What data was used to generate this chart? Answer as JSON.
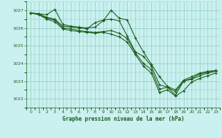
{
  "title": "Graphe pression niveau de la mer (hPa)",
  "bg_color": "#caf0f0",
  "grid_color": "#88ccbb",
  "line_color": "#1a5c1a",
  "ylim": [
    1021.5,
    1027.5
  ],
  "xlim": [
    -0.5,
    23.5
  ],
  "yticks": [
    1022,
    1023,
    1024,
    1025,
    1026,
    1027
  ],
  "xticks": [
    0,
    1,
    2,
    3,
    4,
    5,
    6,
    7,
    8,
    9,
    10,
    11,
    12,
    13,
    14,
    15,
    16,
    17,
    18,
    19,
    20,
    21,
    22,
    23
  ],
  "lines": [
    {
      "x": [
        0,
        1,
        2,
        3,
        4,
        5,
        6,
        7,
        8,
        9,
        10,
        11,
        12,
        13,
        14,
        15,
        16,
        17,
        18,
        19,
        20,
        21,
        22,
        23
      ],
      "y": [
        1026.85,
        1026.8,
        1026.75,
        1027.05,
        1026.2,
        1026.1,
        1026.05,
        1026.0,
        1026.05,
        1026.4,
        1027.0,
        1026.55,
        1026.45,
        1025.45,
        1024.65,
        1023.95,
        1023.25,
        1022.7,
        1022.5,
        1023.05,
        1023.25,
        1023.45,
        1023.55,
        1023.6
      ]
    },
    {
      "x": [
        0,
        1,
        2,
        3,
        4,
        5,
        6,
        7,
        8,
        9,
        10,
        11,
        12,
        13,
        14,
        15,
        16,
        17,
        18,
        19,
        20,
        21,
        22,
        23
      ],
      "y": [
        1026.85,
        1026.8,
        1026.6,
        1026.5,
        1026.1,
        1026.05,
        1026.0,
        1025.95,
        1026.3,
        1026.45,
        1026.5,
        1026.4,
        1025.55,
        1024.65,
        1024.4,
        1023.85,
        1022.8,
        1022.65,
        1022.4,
        1023.0,
        1023.15,
        1023.4,
        1023.5,
        1023.6
      ]
    },
    {
      "x": [
        0,
        1,
        2,
        3,
        4,
        5,
        6,
        7,
        8,
        9,
        10,
        11,
        12,
        13,
        14,
        15,
        16,
        17,
        18,
        19,
        20,
        21,
        22,
        23
      ],
      "y": [
        1026.85,
        1026.75,
        1026.55,
        1026.45,
        1026.0,
        1025.95,
        1025.85,
        1025.8,
        1025.75,
        1025.8,
        1025.85,
        1025.7,
        1025.4,
        1024.6,
        1024.0,
        1023.65,
        1022.55,
        1022.65,
        1022.2,
        1023.0,
        1023.1,
        1023.3,
        1023.45,
        1023.55
      ]
    },
    {
      "x": [
        0,
        1,
        2,
        3,
        4,
        5,
        6,
        7,
        8,
        9,
        10,
        11,
        12,
        13,
        14,
        15,
        16,
        17,
        18,
        19,
        20,
        21,
        22,
        23
      ],
      "y": [
        1026.85,
        1026.75,
        1026.5,
        1026.35,
        1025.95,
        1025.85,
        1025.8,
        1025.75,
        1025.7,
        1025.75,
        1025.65,
        1025.5,
        1025.2,
        1024.5,
        1023.85,
        1023.45,
        1022.35,
        1022.5,
        1022.15,
        1022.45,
        1022.95,
        1023.15,
        1023.3,
        1023.45
      ]
    }
  ]
}
